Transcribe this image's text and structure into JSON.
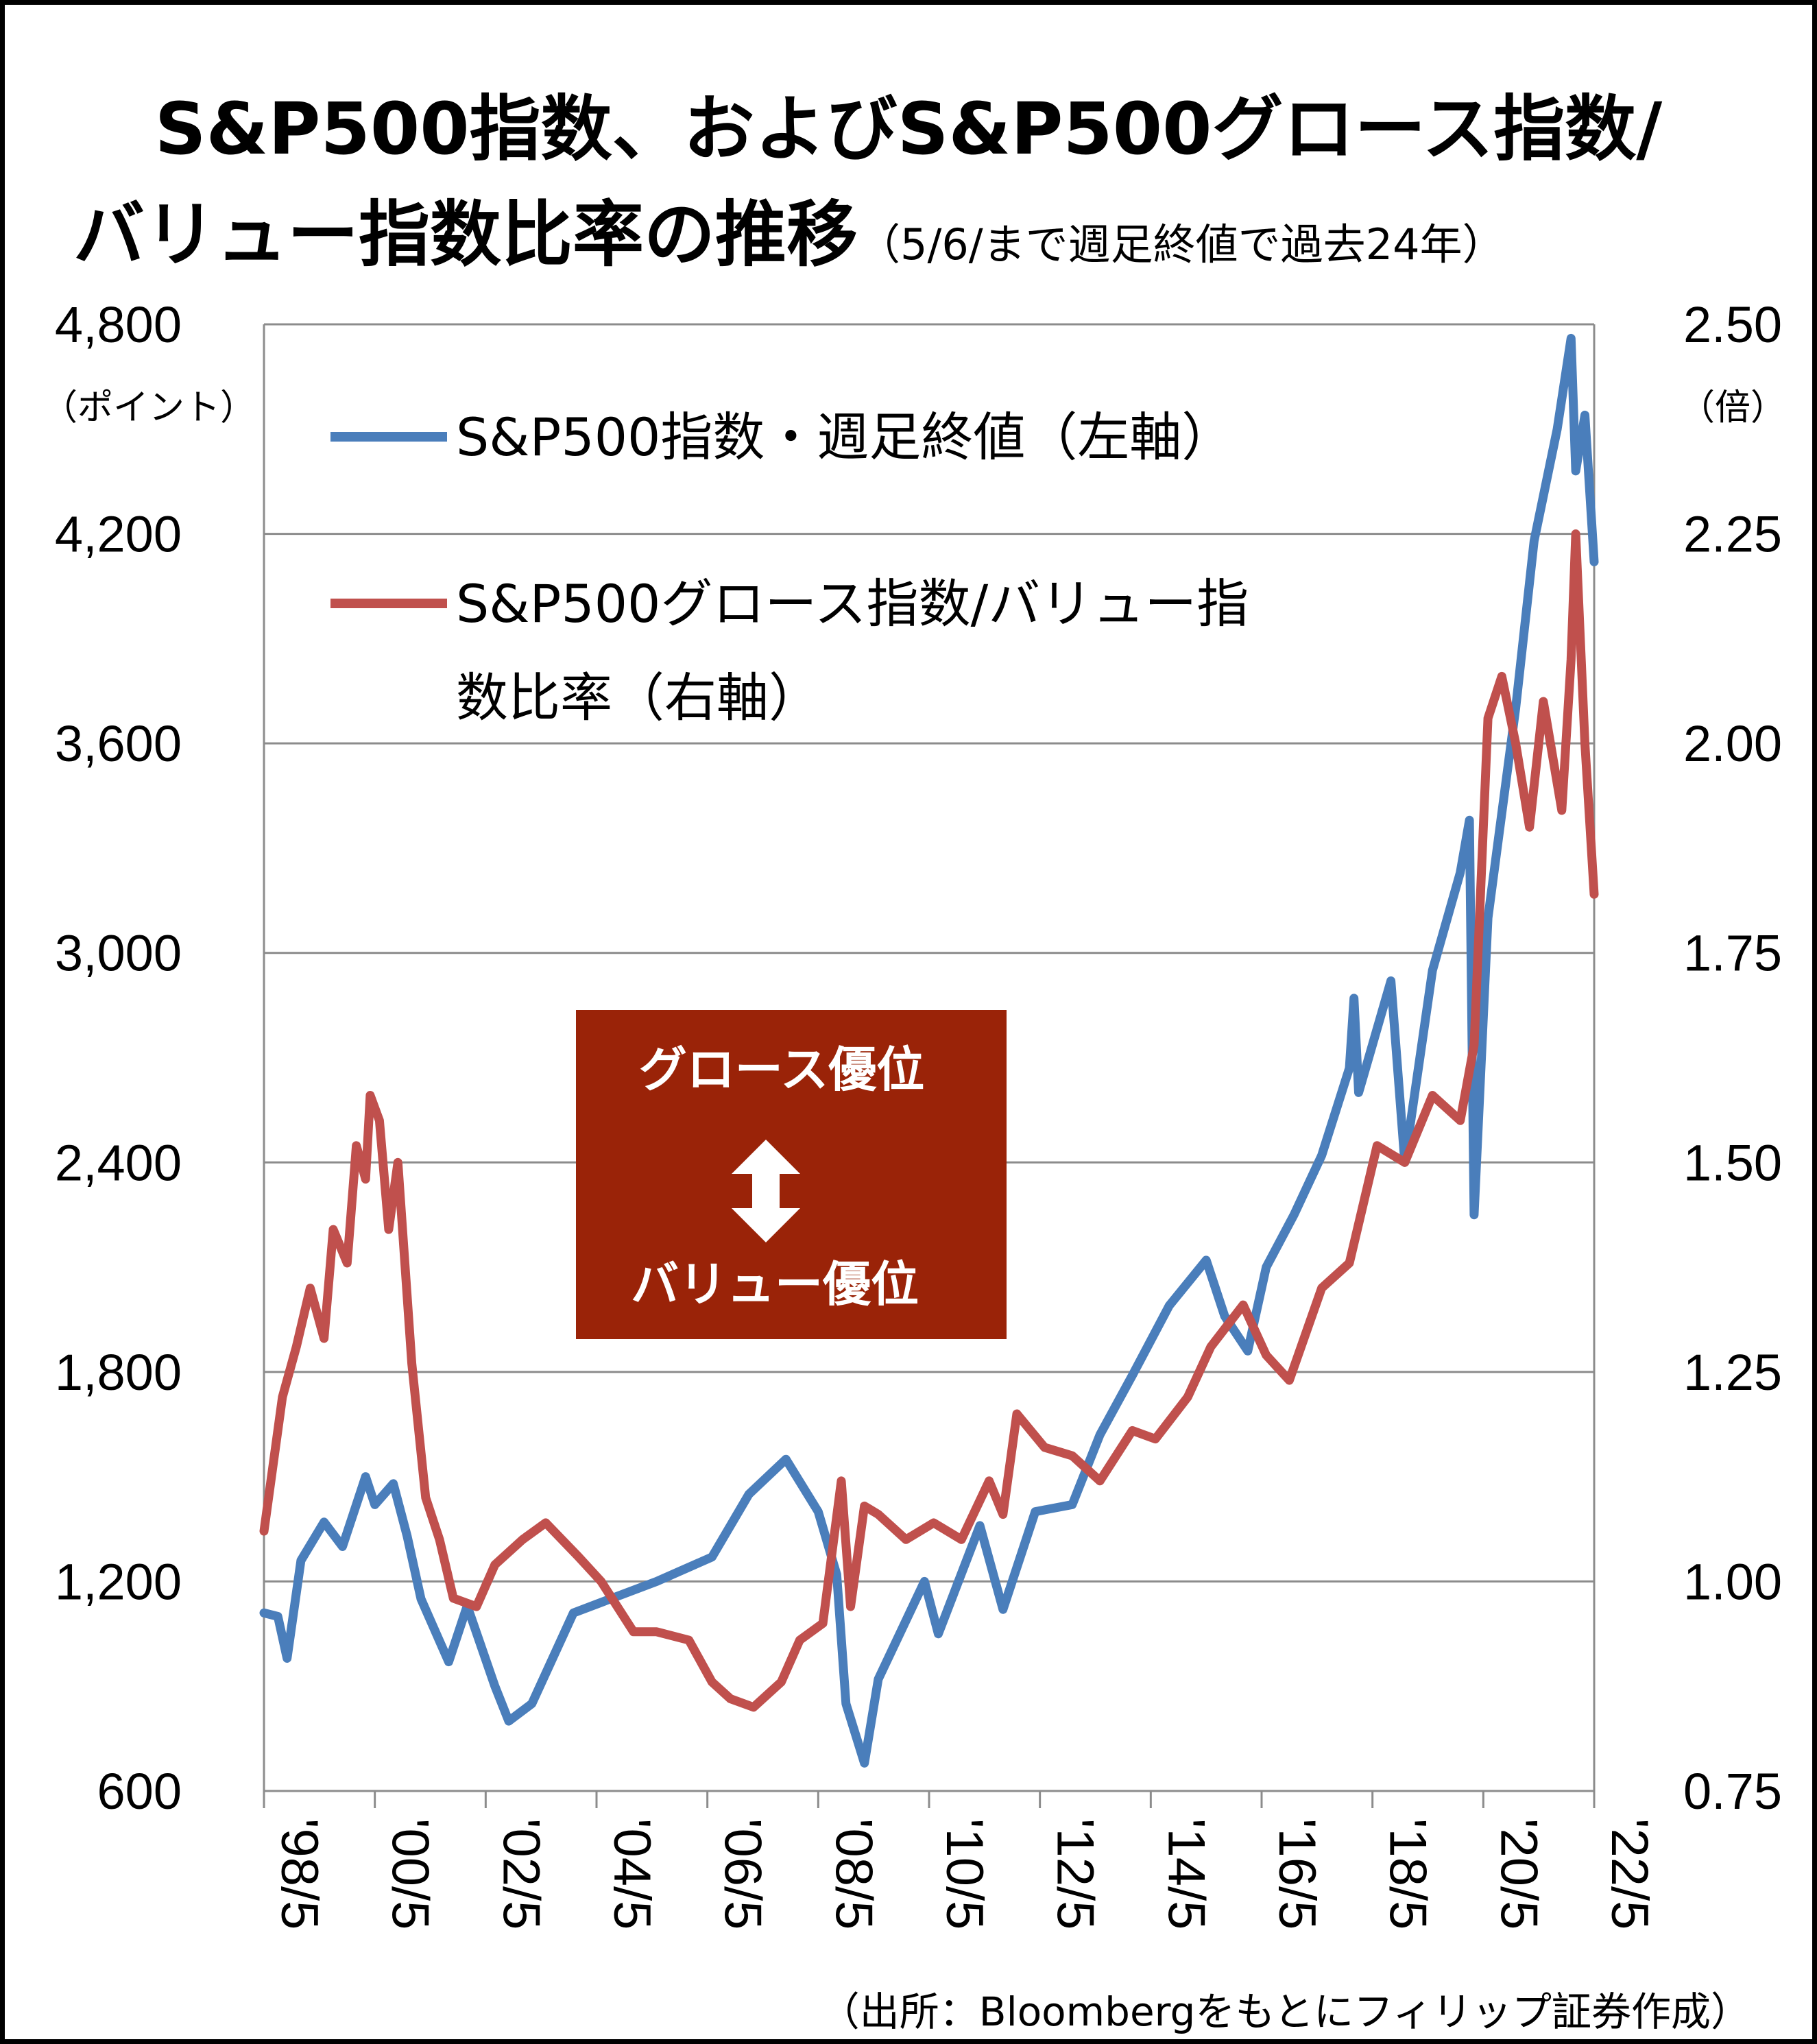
{
  "title_line1": "S&P500指数、およびS&P500グロース指数/",
  "title_line2": "バリュー指数比率の推移",
  "title_note": "（5/6/まで週足終値で過去24年）",
  "left_axis_unit": "（ポイント）",
  "right_axis_unit": "（倍）",
  "source": "（出所：Bloombergをもとにフィリップ証券作成）",
  "callout": {
    "top": "グロース優位",
    "bottom": "バリュー優位",
    "arrow_icon": "double-arrow-icon",
    "color": "#9A2308"
  },
  "legend": {
    "blue_label": "S&P500指数・週足終値（左軸）",
    "red_label_line1": "S&P500グロース指数/バリュー指",
    "red_label_line2": "数比率（右軸）"
  },
  "chart_data": {
    "type": "line",
    "x_ticks": [
      "'98/5",
      "'00/5",
      "'02/5",
      "'04/5",
      "'06/5",
      "'08/5",
      "'10/5",
      "'12/5",
      "'14/5",
      "'16/5",
      "'18/5",
      "'20/5",
      "'22/5"
    ],
    "left_axis": {
      "min": 600,
      "max": 4800,
      "ticks": [
        "4,800",
        "4,200",
        "3,600",
        "3,000",
        "2,400",
        "1,800",
        "1,200",
        "600"
      ]
    },
    "right_axis": {
      "min": 0.75,
      "max": 2.5,
      "ticks": [
        "2.50",
        "2.25",
        "2.00",
        "1.75",
        "1.50",
        "1.25",
        "1.00",
        "0.75"
      ]
    },
    "grid": true,
    "series": [
      {
        "name": "S&P500指数・週足終値（左軸）",
        "axis": "left",
        "color": "#4A7EBB",
        "x": [
          "1998-05",
          "1998-08",
          "1998-10",
          "1999-01",
          "1999-06",
          "1999-10",
          "2000-03",
          "2000-05",
          "2000-09",
          "2000-12",
          "2001-03",
          "2001-09",
          "2002-01",
          "2002-07",
          "2002-10",
          "2003-03",
          "2003-12",
          "2004-06",
          "2005-06",
          "2006-06",
          "2007-02",
          "2007-10",
          "2008-05",
          "2008-09",
          "2008-11",
          "2009-03",
          "2009-06",
          "2010-04",
          "2010-07",
          "2011-04",
          "2011-09",
          "2012-04",
          "2012-12",
          "2013-06",
          "2014-01",
          "2014-09",
          "2015-05",
          "2015-09",
          "2016-02",
          "2016-06",
          "2016-12",
          "2017-06",
          "2017-12",
          "2018-01",
          "2018-02",
          "2018-09",
          "2018-12",
          "2019-06",
          "2019-12",
          "2020-02",
          "2020-03",
          "2020-06",
          "2020-12",
          "2021-04",
          "2021-09",
          "2021-12",
          "2022-01",
          "2022-03",
          "2022-05"
        ],
        "values": [
          1110,
          1100,
          980,
          1260,
          1370,
          1300,
          1500,
          1420,
          1480,
          1330,
          1150,
          970,
          1130,
          900,
          800,
          850,
          1110,
          1140,
          1200,
          1270,
          1450,
          1550,
          1400,
          1220,
          850,
          680,
          920,
          1200,
          1050,
          1360,
          1120,
          1400,
          1420,
          1620,
          1790,
          1990,
          2120,
          1960,
          1860,
          2100,
          2250,
          2420,
          2670,
          2870,
          2600,
          2920,
          2400,
          2950,
          3230,
          3380,
          2250,
          3100,
          3700,
          4180,
          4500,
          4760,
          4380,
          4540,
          4120
        ]
      },
      {
        "name": "S&P500グロース指数/バリュー指数比率（右軸）",
        "axis": "right",
        "color": "#C0504D",
        "x": [
          "1998-05",
          "1998-09",
          "1998-12",
          "1999-03",
          "1999-06",
          "1999-08",
          "1999-11",
          "2000-01",
          "2000-03",
          "2000-04",
          "2000-06",
          "2000-08",
          "2000-10",
          "2001-01",
          "2001-04",
          "2001-07",
          "2001-10",
          "2002-03",
          "2002-07",
          "2003-01",
          "2003-06",
          "2004-01",
          "2004-06",
          "2005-01",
          "2005-06",
          "2006-01",
          "2006-06",
          "2006-10",
          "2007-03",
          "2007-09",
          "2008-01",
          "2008-06",
          "2008-10",
          "2008-12",
          "2009-03",
          "2009-06",
          "2009-12",
          "2010-06",
          "2010-12",
          "2011-06",
          "2011-09",
          "2011-12",
          "2012-06",
          "2012-12",
          "2013-06",
          "2014-01",
          "2014-06",
          "2015-01",
          "2015-06",
          "2016-01",
          "2016-06",
          "2016-11",
          "2017-06",
          "2017-12",
          "2018-06",
          "2018-12",
          "2019-06",
          "2019-12",
          "2020-03",
          "2020-06",
          "2020-09",
          "2020-12",
          "2021-03",
          "2021-06",
          "2021-10",
          "2021-12",
          "2022-01",
          "2022-03",
          "2022-05"
        ],
        "values": [
          1.06,
          1.22,
          1.28,
          1.35,
          1.29,
          1.42,
          1.38,
          1.52,
          1.48,
          1.58,
          1.55,
          1.42,
          1.5,
          1.26,
          1.1,
          1.05,
          0.98,
          0.97,
          1.02,
          1.05,
          1.07,
          1.03,
          1.0,
          0.94,
          0.94,
          0.93,
          0.88,
          0.86,
          0.85,
          0.88,
          0.93,
          0.95,
          1.12,
          0.97,
          1.09,
          1.08,
          1.05,
          1.07,
          1.05,
          1.12,
          1.08,
          1.2,
          1.16,
          1.15,
          1.12,
          1.18,
          1.17,
          1.22,
          1.28,
          1.33,
          1.27,
          1.24,
          1.35,
          1.38,
          1.52,
          1.5,
          1.58,
          1.55,
          1.64,
          2.03,
          2.08,
          2.0,
          1.9,
          2.05,
          1.92,
          2.1,
          2.25,
          2.0,
          1.82
        ]
      }
    ]
  }
}
